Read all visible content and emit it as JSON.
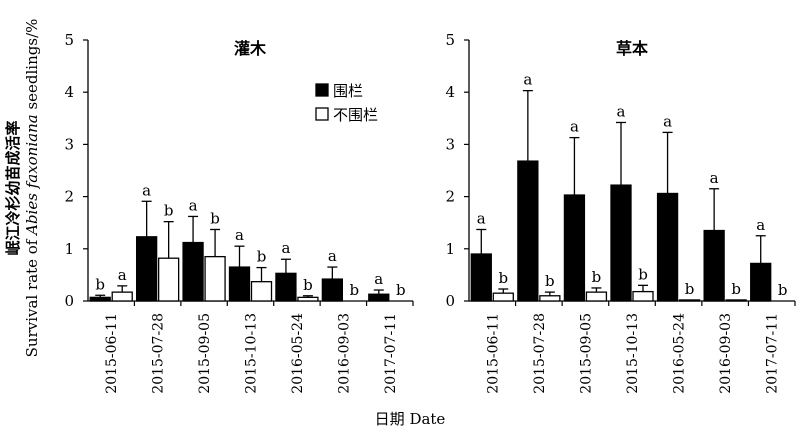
{
  "figure": {
    "ylabel_line1": "岷江冷杉幼苗成活率",
    "ylabel_line2_prefix": "Survival rate of ",
    "ylabel_line2_italic": "Abies faxoniana",
    "ylabel_line2_suffix": " seedlings/%",
    "xlabel": "日期 Date"
  },
  "chart_data": [
    {
      "type": "bar",
      "title": "灌木",
      "categories": [
        "2015-06-11",
        "2015-07-28",
        "2015-09-05",
        "2015-10-13",
        "2016-05-24",
        "2016-09-03",
        "2017-07-11"
      ],
      "ylim": [
        0,
        5
      ],
      "yticks": [
        "0",
        "1",
        "2",
        "3",
        "4",
        "5"
      ],
      "legend_position": "top-right",
      "series": [
        {
          "name": "围栏",
          "fill": "#000000",
          "values": [
            0.07,
            1.23,
            1.12,
            0.65,
            0.53,
            0.42,
            0.13
          ],
          "errors": [
            0.04,
            0.68,
            0.5,
            0.4,
            0.27,
            0.23,
            0.08
          ],
          "letters": [
            "b",
            "a",
            "a",
            "a",
            "a",
            "a",
            "a"
          ]
        },
        {
          "name": "不围栏",
          "fill": "#ffffff",
          "values": [
            0.17,
            0.82,
            0.85,
            0.37,
            0.07,
            0.0,
            0.0
          ],
          "errors": [
            0.12,
            0.7,
            0.52,
            0.27,
            0.03,
            0.0,
            0.0
          ],
          "letters": [
            "a",
            "b",
            "b",
            "b",
            "b",
            "b",
            "b"
          ]
        }
      ]
    },
    {
      "type": "bar",
      "title": "草本",
      "categories": [
        "2015-06-11",
        "2015-07-28",
        "2015-09-05",
        "2015-10-13",
        "2016-05-24",
        "2016-09-03",
        "2017-07-11"
      ],
      "ylim": [
        0,
        5
      ],
      "yticks": [
        "0",
        "1",
        "2",
        "3",
        "4",
        "5"
      ],
      "series": [
        {
          "name": "围栏",
          "fill": "#000000",
          "values": [
            0.9,
            2.68,
            2.03,
            2.22,
            2.06,
            1.35,
            0.72
          ],
          "errors": [
            0.47,
            1.35,
            1.1,
            1.2,
            1.17,
            0.8,
            0.53
          ],
          "letters": [
            "a",
            "a",
            "a",
            "a",
            "a",
            "a",
            "a"
          ]
        },
        {
          "name": "不围栏",
          "fill": "#ffffff",
          "values": [
            0.15,
            0.1,
            0.17,
            0.18,
            0.02,
            0.02,
            0.0
          ],
          "errors": [
            0.08,
            0.07,
            0.08,
            0.12,
            0.0,
            0.0,
            0.0
          ],
          "letters": [
            "b",
            "b",
            "b",
            "b",
            "b",
            "b",
            "b"
          ]
        }
      ]
    }
  ]
}
